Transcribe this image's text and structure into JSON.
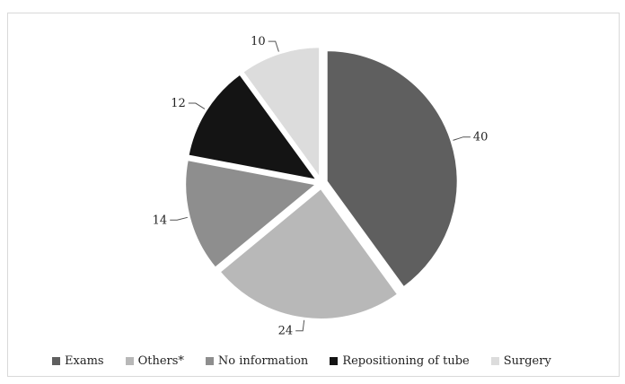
{
  "chart_data": {
    "type": "pie",
    "title": "",
    "categories": [
      "Exams",
      "Others*",
      "No information",
      "Repositioning of tube",
      "Surgery"
    ],
    "values": [
      40,
      24,
      14,
      12,
      10
    ],
    "colors": [
      "#5f5f5f",
      "#b8b8b8",
      "#8e8e8e",
      "#141414",
      "#dcdcdc"
    ],
    "exploded": true,
    "data_labels": true,
    "legend": "bottom"
  }
}
